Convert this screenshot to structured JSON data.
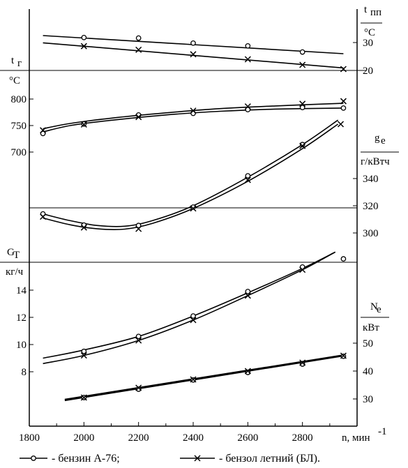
{
  "chart_data": {
    "type": "line",
    "x": {
      "label": "n, мин",
      "label_sup": "-1",
      "range": [
        1800,
        3000
      ],
      "ticks": [
        1800,
        2000,
        2200,
        2400,
        2600,
        2800
      ]
    },
    "axes": {
      "t_pp": {
        "label_main": "t",
        "label_sub": "пп",
        "unit": "°C",
        "side": "right",
        "range": [
          16,
          34
        ],
        "ticks": [
          20,
          30
        ]
      },
      "t_g": {
        "label_main": "t",
        "label_sub": "г",
        "unit": "°C",
        "side": "left",
        "range": [
          650,
          800
        ],
        "ticks": [
          700,
          750,
          800
        ]
      },
      "g_e": {
        "label_main": "g",
        "label_sub": "e",
        "unit": "г/кВтч",
        "side": "right",
        "range": [
          290,
          360
        ],
        "ticks": [
          300,
          320,
          340
        ]
      },
      "G_t": {
        "label_main": "G",
        "label_sub": "Т",
        "unit": "кг/ч",
        "side": "left",
        "range": [
          6,
          16
        ],
        "ticks": [
          8,
          10,
          12,
          14
        ]
      },
      "N_e": {
        "label_main": "N",
        "label_sub": "е",
        "unit": "кВт",
        "side": "right",
        "range": [
          20,
          60
        ],
        "ticks": [
          30,
          40,
          50
        ]
      }
    },
    "series": [
      {
        "name": "бензин А-76",
        "marker": "circle",
        "axis": "t_pp",
        "x": [
          2000,
          2200,
          2400,
          2600,
          2800
        ],
        "y": [
          31.8,
          31.6,
          29.8,
          28.8,
          26.6
        ]
      },
      {
        "name": "бензол летний (БЛ)",
        "marker": "x",
        "axis": "t_pp",
        "x": [
          2000,
          2200,
          2400,
          2600,
          2800,
          2950
        ],
        "y": [
          28.7,
          27.4,
          25.8,
          24,
          22,
          20.5
        ]
      },
      {
        "name": "бензин А-76",
        "marker": "circle",
        "axis": "t_g",
        "x": [
          1850,
          2000,
          2200,
          2400,
          2600,
          2800,
          2950
        ],
        "y": [
          735,
          753,
          770,
          773,
          780,
          784,
          783
        ]
      },
      {
        "name": "бензол летний (БЛ)",
        "marker": "x",
        "axis": "t_g",
        "x": [
          1850,
          2000,
          2200,
          2400,
          2600,
          2800,
          2950
        ],
        "y": [
          741,
          752,
          766,
          778,
          786,
          791,
          796
        ]
      },
      {
        "name": "бензин А-76",
        "marker": "circle",
        "axis": "g_e",
        "x": [
          1850,
          2000,
          2200,
          2400,
          2600,
          2800
        ],
        "y": [
          314,
          305.8,
          305.5,
          319,
          342,
          365
        ]
      },
      {
        "name": "бензол летний (БЛ)",
        "marker": "x",
        "axis": "g_e",
        "x": [
          1850,
          2000,
          2200,
          2400,
          2600,
          2800,
          2940
        ],
        "y": [
          312,
          304,
          303,
          318,
          339,
          364,
          380
        ]
      },
      {
        "name": "бензин А-76",
        "marker": "circle",
        "axis": "G_t",
        "x": [
          2000,
          2200,
          2400,
          2600,
          2800,
          2950
        ],
        "y": [
          9.5,
          10.6,
          12.1,
          13.9,
          15.7,
          16.3
        ]
      },
      {
        "name": "бензол летний (БЛ)",
        "marker": "x",
        "axis": "G_t",
        "x": [
          2000,
          2200,
          2400,
          2600,
          2800
        ],
        "y": [
          9.2,
          10.3,
          11.8,
          13.6,
          15.5
        ]
      },
      {
        "name": "бензин А-76",
        "marker": "circle",
        "axis": "N_e",
        "x": [
          2000,
          2200,
          2400,
          2600,
          2800,
          2950
        ],
        "y": [
          30.5,
          33.5,
          36.8,
          39.5,
          42.5,
          45.3
        ]
      },
      {
        "name": "бензол летний (БЛ)",
        "marker": "x",
        "axis": "N_e",
        "x": [
          2000,
          2200,
          2400,
          2600,
          2800,
          2950
        ],
        "y": [
          30.5,
          34,
          37,
          40,
          43,
          45.5
        ]
      }
    ],
    "curves": [
      {
        "axis": "t_pp",
        "x": [
          1850,
          2950
        ],
        "y": [
          32.5,
          26
        ]
      },
      {
        "axis": "t_pp",
        "x": [
          1850,
          2950
        ],
        "y": [
          29.9,
          20.9
        ]
      },
      {
        "axis": "t_g",
        "x": [
          1850,
          1950,
          2100,
          2300,
          2500,
          2700,
          2950
        ],
        "y": [
          738,
          750,
          760,
          770,
          777,
          781,
          783
        ]
      },
      {
        "axis": "t_g",
        "x": [
          1850,
          1950,
          2100,
          2300,
          2500,
          2700,
          2950
        ],
        "y": [
          744,
          754,
          764,
          774,
          782,
          787,
          792
        ]
      },
      {
        "axis": "g_e",
        "x": [
          1850,
          1950,
          2050,
          2150,
          2250,
          2400,
          2600,
          2800,
          2930
        ],
        "y": [
          314,
          309,
          305.5,
          305,
          309,
          320,
          341,
          365,
          383
        ]
      },
      {
        "axis": "g_e",
        "x": [
          1850,
          1950,
          2050,
          2150,
          2250,
          2400,
          2600,
          2800,
          2930
        ],
        "y": [
          311,
          306,
          303,
          302.8,
          307,
          318,
          338,
          362,
          380
        ]
      },
      {
        "axis": "G_t",
        "x": [
          1850,
          2000,
          2200,
          2400,
          2600,
          2800,
          2920
        ],
        "y": [
          9,
          9.6,
          10.6,
          12.1,
          13.8,
          15.6,
          16.8
        ]
      },
      {
        "axis": "G_t",
        "x": [
          1850,
          2000,
          2200,
          2400,
          2600,
          2800,
          2920
        ],
        "y": [
          8.6,
          9.2,
          10.3,
          11.8,
          13.6,
          15.5,
          16.8
        ]
      },
      {
        "axis": "N_e",
        "x": [
          1930,
          2950
        ],
        "y": [
          29.5,
          45.5
        ]
      },
      {
        "axis": "N_e",
        "x": [
          1930,
          2950
        ],
        "y": [
          29.8,
          45.7
        ]
      }
    ],
    "legend": {
      "placement": "bottom",
      "items": [
        {
          "label": "- бензин А-76;",
          "marker": "circle"
        },
        {
          "label": "- бензол летний (БЛ).",
          "marker": "x"
        }
      ]
    },
    "grid": false
  }
}
